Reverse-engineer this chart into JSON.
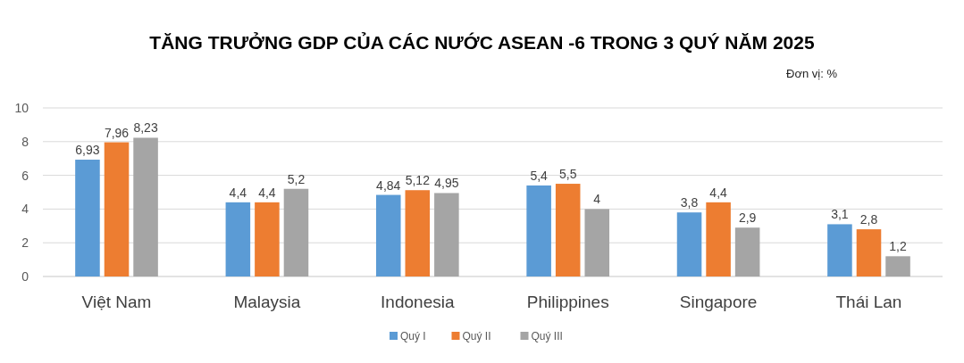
{
  "chart_data": {
    "type": "bar",
    "title": "TĂNG TRƯỞNG GDP CỦA CÁC NƯỚC ASEAN -6 TRONG 3 QUÝ NĂM 2025",
    "subtitle": "Đơn vị: %",
    "categories": [
      "Việt Nam",
      "Malaysia",
      "Indonesia",
      "Philippines",
      "Singapore",
      "Thái Lan"
    ],
    "series": [
      {
        "name": "Quý I",
        "color": "#5b9bd5",
        "values": [
          6.93,
          4.4,
          4.84,
          5.4,
          3.8,
          3.1
        ],
        "value_labels": [
          "6,93",
          "4,4",
          "4,84",
          "5,4",
          "3,8",
          "3,1"
        ]
      },
      {
        "name": "Quý II",
        "color": "#ed7d31",
        "values": [
          7.96,
          4.4,
          5.12,
          5.5,
          4.4,
          2.8
        ],
        "value_labels": [
          "7,96",
          "4,4",
          "5,12",
          "5,5",
          "4,4",
          "2,8"
        ]
      },
      {
        "name": "Quý III",
        "color": "#a5a5a5",
        "values": [
          8.23,
          5.2,
          4.95,
          4,
          2.9,
          1.2
        ],
        "value_labels": [
          "8,23",
          "5,2",
          "4,95",
          "4",
          "2,9",
          "1,2"
        ]
      }
    ],
    "ylim": [
      0,
      10
    ],
    "yticks": [
      0,
      2,
      4,
      6,
      8,
      10
    ],
    "grid": "y",
    "legend": "bottom"
  }
}
